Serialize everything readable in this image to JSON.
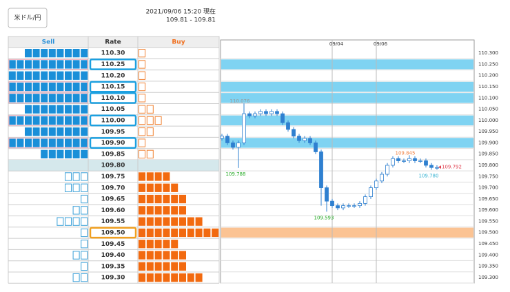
{
  "header": {
    "pair": "米ドル/円",
    "timestamp": "2021/09/06 15:20 現在",
    "quote": "109.81 - 109.81"
  },
  "order_book": {
    "columns": [
      "Sell",
      "Rate",
      "Buy"
    ],
    "rows": [
      {
        "rate": "110.30",
        "sell": 8,
        "sell_style": "filled",
        "buy": 1,
        "buy_style": "outline"
      },
      {
        "rate": "110.25",
        "sell": 10,
        "sell_style": "filled",
        "buy": 1,
        "buy_style": "outline",
        "highlight": "sell"
      },
      {
        "rate": "110.20",
        "sell": 10,
        "sell_style": "filled",
        "buy": 1,
        "buy_style": "outline"
      },
      {
        "rate": "110.15",
        "sell": 10,
        "sell_style": "filled",
        "buy": 1,
        "buy_style": "outline",
        "highlight": "sell"
      },
      {
        "rate": "110.10",
        "sell": 10,
        "sell_style": "filled",
        "buy": 1,
        "buy_style": "outline",
        "highlight": "sell"
      },
      {
        "rate": "110.05",
        "sell": 8,
        "sell_style": "filled",
        "buy": 2,
        "buy_style": "outline"
      },
      {
        "rate": "110.00",
        "sell": 10,
        "sell_style": "filled",
        "buy": 3,
        "buy_style": "outline",
        "highlight": "sell"
      },
      {
        "rate": "109.95",
        "sell": 8,
        "sell_style": "filled",
        "buy": 2,
        "buy_style": "outline"
      },
      {
        "rate": "109.90",
        "sell": 10,
        "sell_style": "filled",
        "buy": 1,
        "buy_style": "outline",
        "highlight": "sell"
      },
      {
        "rate": "109.85",
        "sell": 6,
        "sell_style": "filled",
        "buy": 2,
        "buy_style": "outline"
      },
      {
        "rate": "109.80",
        "sell": 0,
        "buy": 0,
        "current": true
      },
      {
        "rate": "109.75",
        "sell": 3,
        "sell_style": "outline",
        "buy": 4,
        "buy_style": "filled"
      },
      {
        "rate": "109.70",
        "sell": 3,
        "sell_style": "outline",
        "buy": 5,
        "buy_style": "filled"
      },
      {
        "rate": "109.65",
        "sell": 1,
        "sell_style": "outline",
        "buy": 6,
        "buy_style": "filled"
      },
      {
        "rate": "109.60",
        "sell": 2,
        "sell_style": "outline",
        "buy": 6,
        "buy_style": "filled"
      },
      {
        "rate": "109.55",
        "sell": 4,
        "sell_style": "outline",
        "buy": 8,
        "buy_style": "filled"
      },
      {
        "rate": "109.50",
        "sell": 1,
        "sell_style": "outline",
        "buy": 10,
        "buy_style": "filled",
        "highlight": "buy"
      },
      {
        "rate": "109.45",
        "sell": 1,
        "sell_style": "outline",
        "buy": 5,
        "buy_style": "filled"
      },
      {
        "rate": "109.40",
        "sell": 2,
        "sell_style": "outline",
        "buy": 6,
        "buy_style": "filled"
      },
      {
        "rate": "109.35",
        "sell": 1,
        "sell_style": "outline",
        "buy": 6,
        "buy_style": "filled"
      },
      {
        "rate": "109.30",
        "sell": 2,
        "sell_style": "outline",
        "buy": 8,
        "buy_style": "filled"
      }
    ]
  },
  "chart_data": {
    "type": "candlestick",
    "x": [
      null,
      null,
      null,
      null,
      null,
      null,
      null,
      null,
      null,
      null,
      null,
      null,
      null,
      null,
      null,
      null,
      null,
      null,
      null,
      null,
      "09/04",
      null,
      null,
      null,
      null,
      null,
      null,
      null,
      "09/06",
      null,
      null,
      null,
      null,
      null,
      null,
      null,
      null,
      null,
      null,
      null
    ],
    "ohlc": [
      [
        109.92,
        109.94,
        109.91,
        109.93
      ],
      [
        109.93,
        109.94,
        109.89,
        109.9
      ],
      [
        109.9,
        109.91,
        109.87,
        109.88
      ],
      [
        109.88,
        109.91,
        109.788,
        109.9
      ],
      [
        109.9,
        110.076,
        109.89,
        110.03
      ],
      [
        110.03,
        110.04,
        110.01,
        110.02
      ],
      [
        110.02,
        110.04,
        110.01,
        110.03
      ],
      [
        110.03,
        110.05,
        110.02,
        110.04
      ],
      [
        110.04,
        110.05,
        110.02,
        110.03
      ],
      [
        110.03,
        110.05,
        110.02,
        110.04
      ],
      [
        110.04,
        110.05,
        110.02,
        110.03
      ],
      [
        110.03,
        110.04,
        109.98,
        109.99
      ],
      [
        109.99,
        110.0,
        109.95,
        109.96
      ],
      [
        109.96,
        109.97,
        109.92,
        109.93
      ],
      [
        109.93,
        109.94,
        109.9,
        109.91
      ],
      [
        109.91,
        109.93,
        109.9,
        109.92
      ],
      [
        109.92,
        109.93,
        109.89,
        109.9
      ],
      [
        109.9,
        109.91,
        109.85,
        109.86
      ],
      [
        109.86,
        109.87,
        109.62,
        109.7
      ],
      [
        109.7,
        109.71,
        109.593,
        109.64
      ],
      [
        109.64,
        109.65,
        109.61,
        109.62
      ],
      [
        109.62,
        109.63,
        109.6,
        109.61
      ],
      [
        109.61,
        109.63,
        109.6,
        109.62
      ],
      [
        109.62,
        109.63,
        109.61,
        109.62
      ],
      [
        109.62,
        109.63,
        109.61,
        109.62
      ],
      [
        109.62,
        109.64,
        109.61,
        109.63
      ],
      [
        109.63,
        109.67,
        109.62,
        109.66
      ],
      [
        109.66,
        109.71,
        109.65,
        109.7
      ],
      [
        109.7,
        109.74,
        109.69,
        109.73
      ],
      [
        109.73,
        109.77,
        109.72,
        109.76
      ],
      [
        109.76,
        109.81,
        109.75,
        109.8
      ],
      [
        109.8,
        109.84,
        109.79,
        109.83
      ],
      [
        109.83,
        109.84,
        109.81,
        109.82
      ],
      [
        109.82,
        109.83,
        109.81,
        109.82
      ],
      [
        109.82,
        109.845,
        109.81,
        109.83
      ],
      [
        109.83,
        109.84,
        109.81,
        109.82
      ],
      [
        109.82,
        109.83,
        109.81,
        109.82
      ],
      [
        109.82,
        109.83,
        109.79,
        109.8
      ],
      [
        109.8,
        109.81,
        109.78,
        109.79
      ],
      [
        109.79,
        109.8,
        109.78,
        109.79
      ]
    ],
    "colors": {
      "up": "#ffffff",
      "down": "#2f80d0",
      "edge": "#2f80d0",
      "sell_band": "#7fd3f2",
      "buy_band": "#fbc393"
    },
    "ylim": [
      109.275,
      110.325
    ],
    "yticks": [
      {
        "value": 110.3,
        "label": "110.300"
      },
      {
        "value": 110.25,
        "label": "110.250"
      },
      {
        "value": 110.2,
        "label": "110.200"
      },
      {
        "value": 110.15,
        "label": "110.150"
      },
      {
        "value": 110.1,
        "label": "110.100"
      },
      {
        "value": 110.05,
        "label": "110.050"
      },
      {
        "value": 110,
        "label": "110.000"
      },
      {
        "value": 109.95,
        "label": "109.950"
      },
      {
        "value": 109.9,
        "label": "109.900"
      },
      {
        "value": 109.85,
        "label": "109.850"
      },
      {
        "value": 109.8,
        "label": "109.800"
      },
      {
        "value": 109.75,
        "label": "109.750"
      },
      {
        "value": 109.7,
        "label": "109.700"
      },
      {
        "value": 109.65,
        "label": "109.650"
      },
      {
        "value": 109.6,
        "label": "109.600"
      },
      {
        "value": 109.55,
        "label": "109.550"
      },
      {
        "value": 109.5,
        "label": "109.500"
      },
      {
        "value": 109.45,
        "label": "109.450"
      },
      {
        "value": 109.4,
        "label": "109.400"
      },
      {
        "value": 109.35,
        "label": "109.350"
      },
      {
        "value": 109.3,
        "label": "109.300"
      }
    ],
    "annotations": [
      {
        "value": 110.076,
        "color": "#999999"
      },
      {
        "value": 109.788,
        "color": "#22aa22"
      },
      {
        "value": 109.593,
        "color": "#22aa22"
      },
      {
        "value": 109.845,
        "color": "#f08040"
      },
      {
        "value": 109.792,
        "color": "#e04050"
      },
      {
        "value": 109.78,
        "label": "109.780",
        "color": "#30b0d0"
      }
    ]
  }
}
